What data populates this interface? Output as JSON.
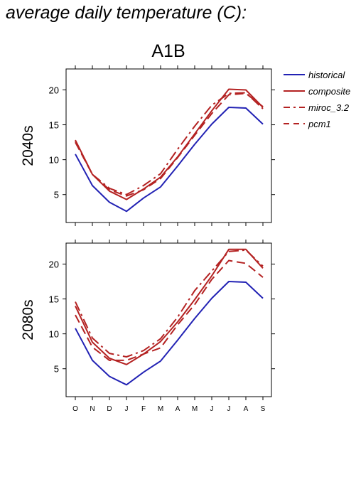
{
  "page": {
    "title": "average daily temperature (C):"
  },
  "colors": {
    "historical": "#2222b4",
    "model": "#b42222"
  },
  "chart_data": {
    "type": "line",
    "title": "A1B",
    "months": [
      "O",
      "N",
      "D",
      "J",
      "F",
      "M",
      "A",
      "M",
      "J",
      "J",
      "A",
      "S"
    ],
    "ylim": [
      1,
      23
    ],
    "yticks": [
      "5",
      "10",
      "15",
      "20"
    ],
    "legend_position": "top-right",
    "legend": [
      {
        "name": "historical",
        "style": "solid",
        "color": "#2222b4"
      },
      {
        "name": "composite",
        "style": "solid",
        "color": "#b42222"
      },
      {
        "name": "miroc_3.2",
        "style": "dashdot",
        "color": "#b42222"
      },
      {
        "name": "pcm1",
        "style": "dashed",
        "color": "#b42222"
      }
    ],
    "panels": [
      {
        "ylabel": "2040s",
        "series": [
          {
            "name": "historical",
            "values": [
              10.8,
              6.3,
              3.9,
              2.6,
              4.5,
              6.1,
              9.1,
              12.2,
              15.1,
              17.5,
              17.4,
              15.1
            ]
          },
          {
            "name": "composite",
            "values": [
              12.8,
              7.9,
              5.5,
              4.3,
              5.8,
              7.5,
              10.4,
              13.7,
              17.0,
              20.1,
              20.0,
              17.5
            ]
          },
          {
            "name": "miroc_3.2",
            "values": [
              12.7,
              7.9,
              5.9,
              5.0,
              6.3,
              8.0,
              11.5,
              14.8,
              17.8,
              19.5,
              19.6,
              17.3
            ]
          },
          {
            "name": "pcm1",
            "values": [
              12.5,
              7.9,
              5.7,
              4.8,
              5.7,
              7.3,
              10.3,
              13.5,
              16.6,
              19.3,
              19.5,
              17.6
            ]
          }
        ]
      },
      {
        "ylabel": "2080s",
        "series": [
          {
            "name": "historical",
            "values": [
              10.8,
              6.2,
              3.9,
              2.7,
              4.5,
              6.1,
              9.1,
              12.2,
              15.1,
              17.5,
              17.4,
              15.1
            ]
          },
          {
            "name": "composite",
            "values": [
              14.0,
              8.8,
              6.5,
              5.6,
              7.1,
              8.9,
              11.7,
              14.9,
              18.3,
              22.1,
              22.1,
              19.4
            ]
          },
          {
            "name": "miroc_3.2",
            "values": [
              14.6,
              9.4,
              7.2,
              6.7,
              7.6,
              9.3,
              12.4,
              16.2,
              19.0,
              21.8,
              22.0,
              19.7
            ]
          },
          {
            "name": "pcm1",
            "values": [
              12.7,
              8.1,
              6.2,
              6.2,
              7.1,
              8.0,
              11.3,
              14.2,
              17.8,
              20.5,
              20.1,
              18.1
            ]
          }
        ]
      }
    ]
  }
}
